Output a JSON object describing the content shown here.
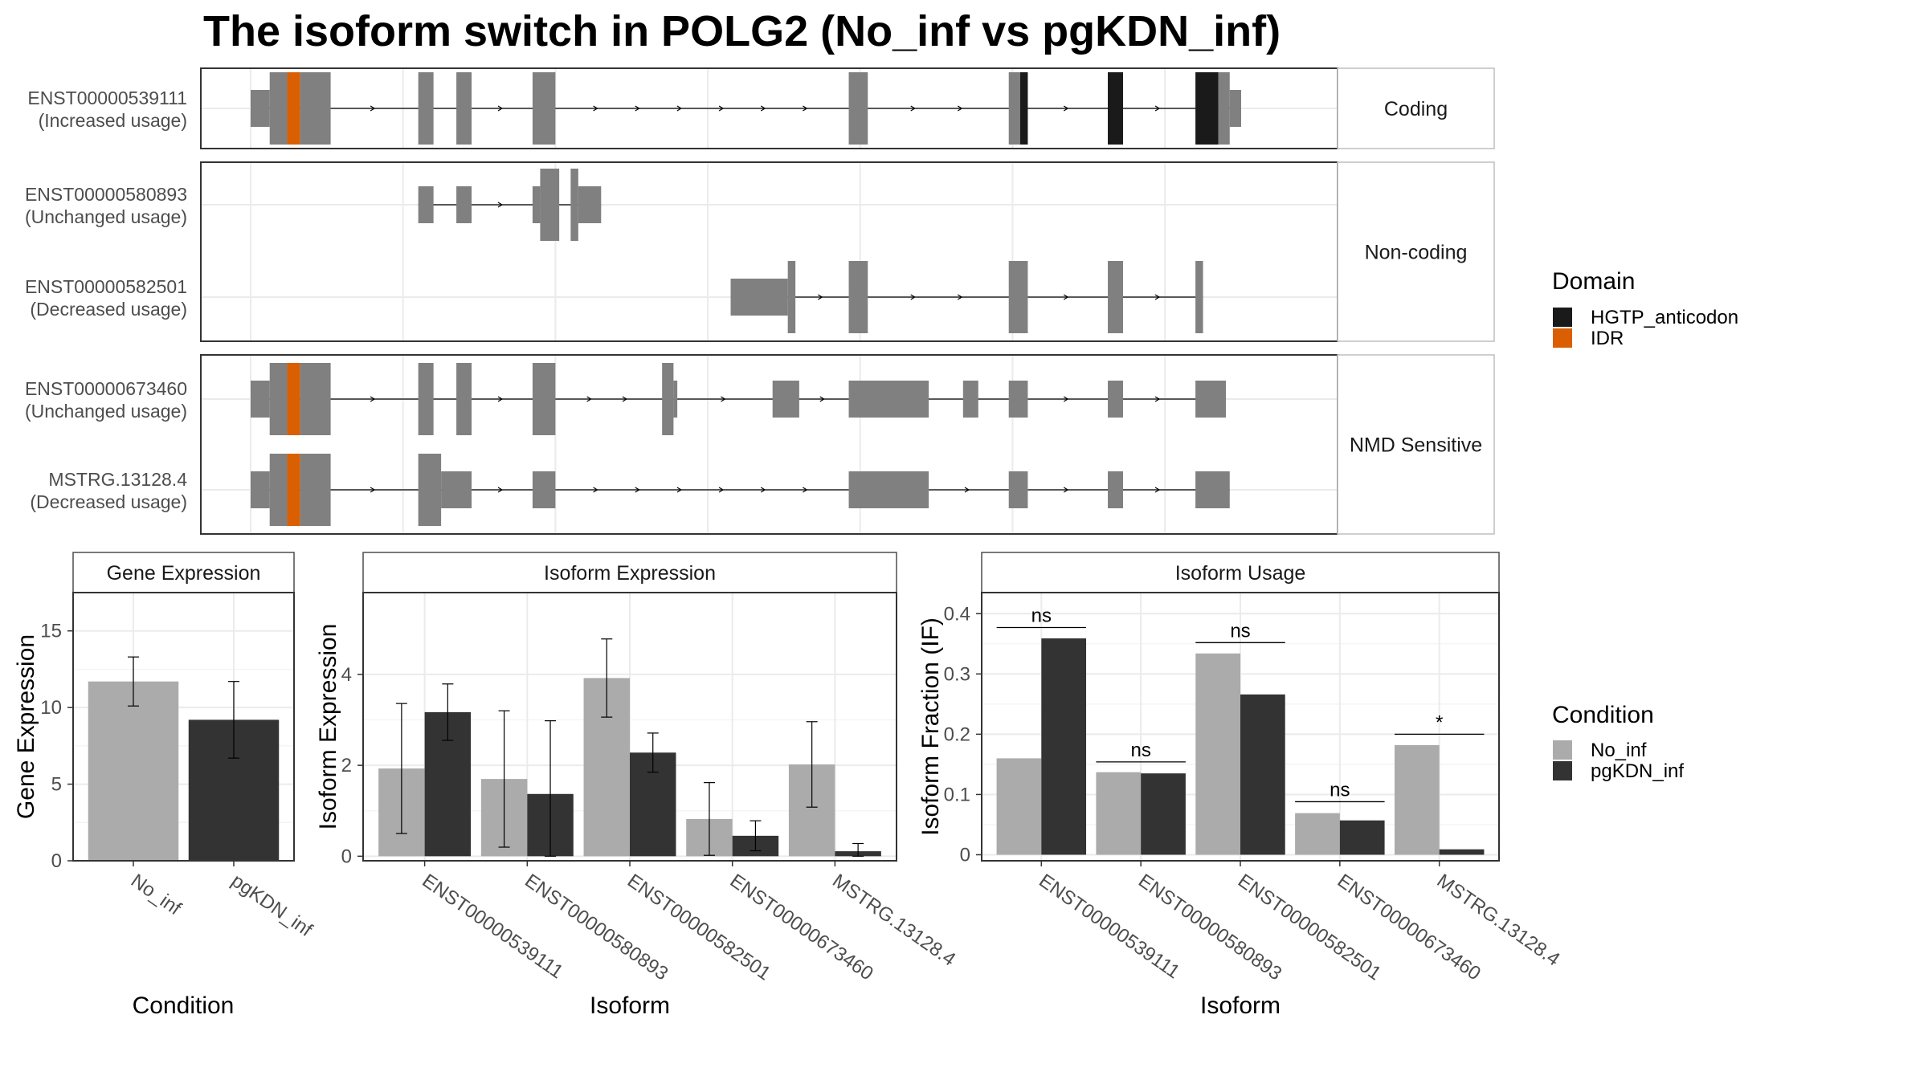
{
  "title": "The isoform switch in POLG2 (No_inf vs pgKDN_inf)",
  "colors": {
    "exon": "#808080",
    "idr": "#D95F02",
    "hgtp": "#1a1a1a",
    "no_inf": "#ABABAB",
    "pgkdn_inf": "#333333",
    "grid": "#EBEBEB",
    "frame": "#333333"
  },
  "structure": {
    "panels": [
      {
        "strip": "Coding",
        "isoforms": [
          {
            "id": "ENST00000539111",
            "usage": "(Increased usage)",
            "exons": [
              {
                "s": 0.0,
                "e": 2.5,
                "type": "utr"
              },
              {
                "s": 2.5,
                "e": 4.8,
                "type": "cds"
              },
              {
                "s": 4.8,
                "e": 6.5,
                "type": "idr"
              },
              {
                "s": 6.5,
                "e": 10.5,
                "type": "cds"
              },
              {
                "s": 22.0,
                "e": 24.0,
                "type": "cds"
              },
              {
                "s": 27.0,
                "e": 29.0,
                "type": "cds"
              },
              {
                "s": 37.0,
                "e": 40.0,
                "type": "cds"
              },
              {
                "s": 78.5,
                "e": 81.0,
                "type": "cds"
              },
              {
                "s": 99.5,
                "e": 101.0,
                "type": "cds"
              },
              {
                "s": 101.0,
                "e": 102.0,
                "type": "hgtp"
              },
              {
                "s": 112.5,
                "e": 114.5,
                "type": "hgtp"
              },
              {
                "s": 124.0,
                "e": 127.0,
                "type": "hgtp"
              },
              {
                "s": 127.0,
                "e": 128.5,
                "type": "cds"
              },
              {
                "s": 128.5,
                "e": 130.0,
                "type": "utr"
              }
            ]
          }
        ]
      },
      {
        "strip": "Non-coding",
        "isoforms": [
          {
            "id": "ENST00000580893",
            "usage": "(Unchanged usage)",
            "exons": [
              {
                "s": 22.0,
                "e": 24.0,
                "type": "utr"
              },
              {
                "s": 27.0,
                "e": 29.0,
                "type": "utr"
              },
              {
                "s": 37.0,
                "e": 38.0,
                "type": "utr"
              },
              {
                "s": 38.0,
                "e": 40.5,
                "type": "cds"
              },
              {
                "s": 42.0,
                "e": 43.0,
                "type": "cds"
              },
              {
                "s": 43.0,
                "e": 46.0,
                "type": "utr"
              }
            ]
          },
          {
            "id": "ENST00000582501",
            "usage": "(Decreased usage)",
            "exons": [
              {
                "s": 63.0,
                "e": 70.5,
                "type": "utr"
              },
              {
                "s": 70.5,
                "e": 71.5,
                "type": "cds"
              },
              {
                "s": 78.5,
                "e": 81.0,
                "type": "cds"
              },
              {
                "s": 99.5,
                "e": 102.0,
                "type": "cds"
              },
              {
                "s": 112.5,
                "e": 114.5,
                "type": "cds"
              },
              {
                "s": 124.0,
                "e": 125.0,
                "type": "cds"
              }
            ]
          }
        ]
      },
      {
        "strip": "NMD Sensitive",
        "isoforms": [
          {
            "id": "ENST00000673460",
            "usage": "(Unchanged usage)",
            "exons": [
              {
                "s": 0.0,
                "e": 2.5,
                "type": "utr"
              },
              {
                "s": 2.5,
                "e": 4.8,
                "type": "cds"
              },
              {
                "s": 4.8,
                "e": 6.5,
                "type": "idr"
              },
              {
                "s": 6.5,
                "e": 10.5,
                "type": "cds"
              },
              {
                "s": 22.0,
                "e": 24.0,
                "type": "cds"
              },
              {
                "s": 27.0,
                "e": 29.0,
                "type": "cds"
              },
              {
                "s": 37.0,
                "e": 40.0,
                "type": "cds"
              },
              {
                "s": 54.0,
                "e": 55.5,
                "type": "cds"
              },
              {
                "s": 55.5,
                "e": 56.0,
                "type": "utr"
              },
              {
                "s": 68.5,
                "e": 72.0,
                "type": "utr"
              },
              {
                "s": 78.5,
                "e": 89.0,
                "type": "utr"
              },
              {
                "s": 93.5,
                "e": 95.5,
                "type": "utr"
              },
              {
                "s": 99.5,
                "e": 102.0,
                "type": "utr"
              },
              {
                "s": 112.5,
                "e": 114.5,
                "type": "utr"
              },
              {
                "s": 124.0,
                "e": 128.0,
                "type": "utr"
              }
            ]
          },
          {
            "id": "MSTRG.13128.4",
            "usage": "(Decreased usage)",
            "exons": [
              {
                "s": 0.0,
                "e": 2.5,
                "type": "utr"
              },
              {
                "s": 2.5,
                "e": 4.8,
                "type": "cds"
              },
              {
                "s": 4.8,
                "e": 6.5,
                "type": "idr"
              },
              {
                "s": 6.5,
                "e": 10.5,
                "type": "cds"
              },
              {
                "s": 22.0,
                "e": 25.0,
                "type": "cds"
              },
              {
                "s": 25.0,
                "e": 29.0,
                "type": "utr"
              },
              {
                "s": 37.0,
                "e": 40.0,
                "type": "utr"
              },
              {
                "s": 78.5,
                "e": 89.0,
                "type": "utr"
              },
              {
                "s": 99.5,
                "e": 102.0,
                "type": "utr"
              },
              {
                "s": 112.5,
                "e": 114.5,
                "type": "utr"
              },
              {
                "s": 124.0,
                "e": 128.5,
                "type": "utr"
              }
            ]
          }
        ]
      }
    ]
  },
  "legends": {
    "domain": {
      "title": "Domain",
      "items": [
        {
          "label": "HGTP_anticodon",
          "color": "#1a1a1a"
        },
        {
          "label": "IDR",
          "color": "#D95F02"
        }
      ]
    },
    "condition": {
      "title": "Condition",
      "items": [
        {
          "label": "No_inf",
          "color": "#ABABAB"
        },
        {
          "label": "pgKDN_inf",
          "color": "#333333"
        }
      ]
    }
  },
  "chart_data": [
    {
      "type": "bar",
      "title": "Gene Expression",
      "xlabel": "Condition",
      "ylabel": "Gene Expression",
      "categories": [
        "No_inf",
        "pgKDN_inf"
      ],
      "values": [
        11.7,
        9.2
      ],
      "errors": [
        [
          10.1,
          13.3
        ],
        [
          6.7,
          11.7
        ]
      ],
      "ylim": [
        0,
        17.5
      ],
      "yticks": [
        0,
        5,
        10,
        15
      ],
      "grid": true
    },
    {
      "type": "bar",
      "title": "Isoform Expression",
      "xlabel": "Isoform",
      "ylabel": "Isoform Expression",
      "categories": [
        "ENST00000539111",
        "ENST00000580893",
        "ENST00000582501",
        "ENST00000673460",
        "MSTRG.13128.4"
      ],
      "series": [
        {
          "name": "No_inf",
          "values": [
            1.93,
            1.7,
            3.92,
            0.82,
            2.02
          ],
          "errors": [
            [
              0.5,
              3.36
            ],
            [
              0.2,
              3.2
            ],
            [
              3.06,
              4.78
            ],
            [
              0.02,
              1.62
            ],
            [
              1.08,
              2.96
            ]
          ]
        },
        {
          "name": "pgKDN_inf",
          "values": [
            3.17,
            1.37,
            2.28,
            0.45,
            0.11
          ],
          "errors": [
            [
              2.55,
              3.79
            ],
            [
              0.0,
              2.98
            ],
            [
              1.85,
              2.71
            ],
            [
              0.12,
              0.78
            ],
            [
              0.0,
              0.28
            ]
          ]
        }
      ],
      "ylim": [
        -0.1,
        5.8
      ],
      "yticks": [
        0,
        2,
        4
      ],
      "grid": true
    },
    {
      "type": "bar",
      "title": "Isoform Usage",
      "xlabel": "Isoform",
      "ylabel": "Isoform Fraction (IF)",
      "categories": [
        "ENST00000539111",
        "ENST00000580893",
        "ENST00000582501",
        "ENST00000673460",
        "MSTRG.13128.4"
      ],
      "series": [
        {
          "name": "No_inf",
          "values": [
            0.16,
            0.137,
            0.334,
            0.069,
            0.182
          ]
        },
        {
          "name": "pgKDN_inf",
          "values": [
            0.359,
            0.135,
            0.266,
            0.057,
            0.009
          ]
        }
      ],
      "significance": [
        {
          "label": "ns",
          "y": 0.377
        },
        {
          "label": "ns",
          "y": 0.154
        },
        {
          "label": "ns",
          "y": 0.352
        },
        {
          "label": "ns",
          "y": 0.088
        },
        {
          "label": "*",
          "y": 0.2
        }
      ],
      "ylim": [
        -0.01,
        0.435
      ],
      "yticks": [
        0.0,
        0.1,
        0.2,
        0.3,
        0.4
      ],
      "grid": true
    }
  ]
}
